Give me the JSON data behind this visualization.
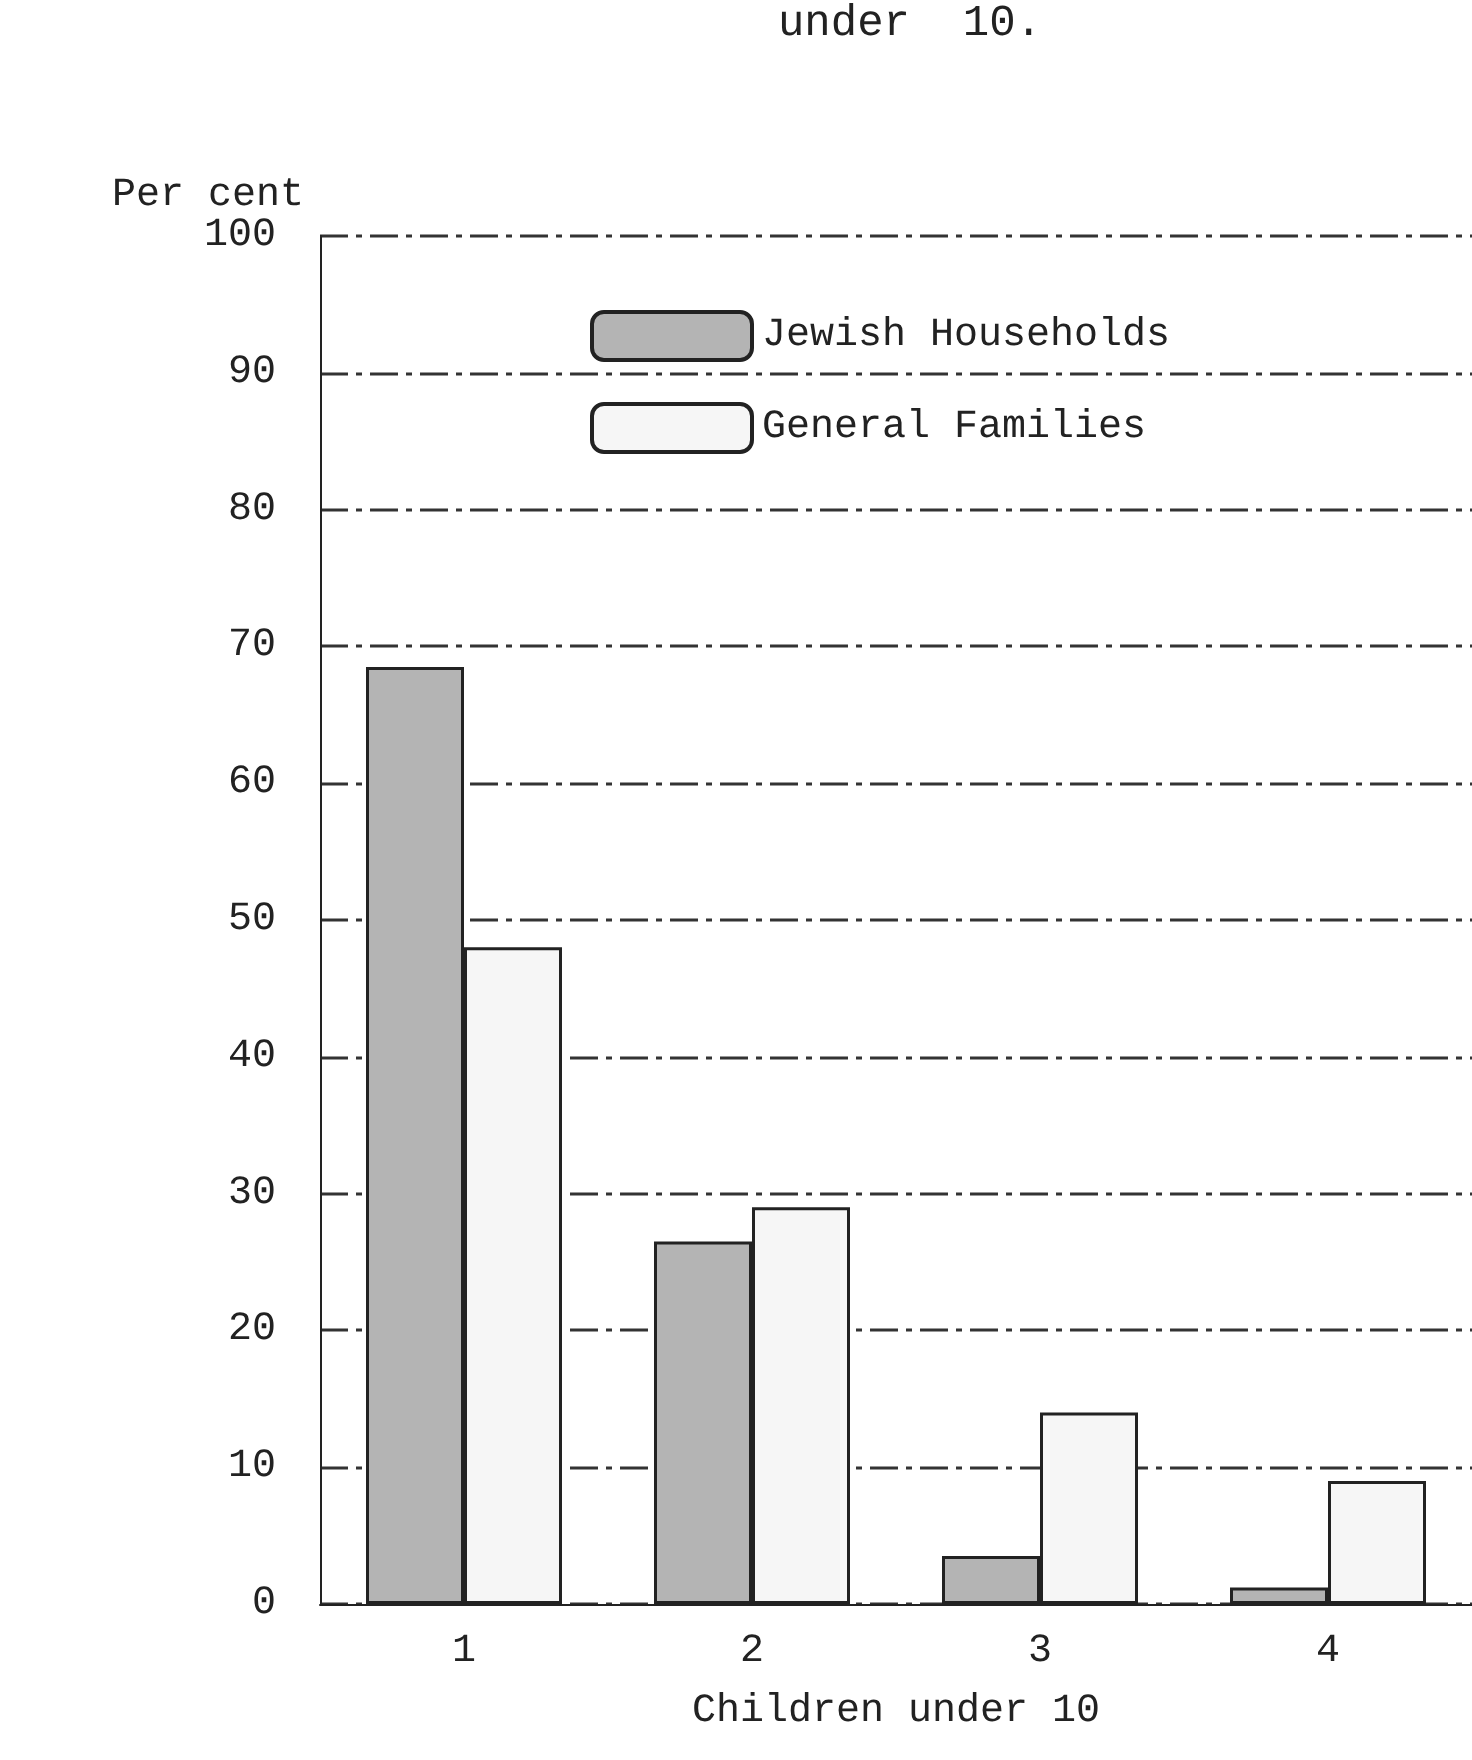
{
  "chart_data": {
    "type": "bar",
    "title": "under  10.",
    "xlabel": "Children under 10",
    "ylabel": "Per cent",
    "categories": [
      "1",
      "2",
      "3",
      "4"
    ],
    "series": [
      {
        "name": "Jewish Households",
        "color": "#b4b4b4",
        "values": [
          68.5,
          26.5,
          3.5,
          1.2
        ]
      },
      {
        "name": "General Families",
        "color": "#f6f6f6",
        "values": [
          48,
          29,
          14,
          9
        ]
      }
    ],
    "ylim": [
      0,
      100
    ],
    "yticks": [
      0,
      10,
      20,
      30,
      40,
      50,
      60,
      70,
      80,
      90,
      100
    ],
    "grid": "y",
    "legend": "top"
  }
}
